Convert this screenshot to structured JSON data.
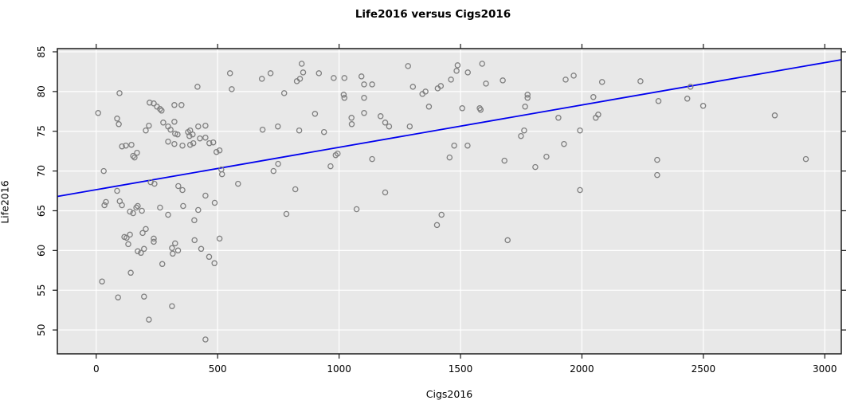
{
  "title": "Life2016 versus Cigs2016",
  "chart_data": {
    "type": "scatter",
    "title": "Life2016 versus Cigs2016",
    "xlabel": "Cigs2016",
    "ylabel": "Life2016",
    "x_ticks": [
      0,
      500,
      1000,
      1500,
      2000,
      2500,
      3000
    ],
    "y_ticks": [
      50,
      55,
      60,
      65,
      70,
      75,
      80,
      85
    ],
    "xlim": [
      -160,
      3068
    ],
    "ylim": [
      47.0,
      85.4
    ],
    "grid": true,
    "legend": null,
    "regression_line": {
      "x1": -160,
      "y1": 66.8,
      "x2": 3068,
      "y2": 84.0
    },
    "colors": {
      "panel_background": "#e8e8e8",
      "gridline": "#ffffff",
      "point_stroke": "#7f7f7f",
      "regression_line": "#0000ee",
      "axis": "#1a1a1a",
      "text": "#000000"
    },
    "point_radius": 3.1,
    "points": [
      [
        8,
        77.3
      ],
      [
        96,
        79.8
      ],
      [
        417,
        80.6
      ],
      [
        551,
        82.3
      ],
      [
        558,
        80.3
      ],
      [
        86,
        76.6
      ],
      [
        93,
        75.9
      ],
      [
        220,
        78.6
      ],
      [
        237,
        78.5
      ],
      [
        250,
        78.1
      ],
      [
        263,
        77.8
      ],
      [
        269,
        77.6
      ],
      [
        322,
        78.3
      ],
      [
        351,
        78.3
      ],
      [
        276,
        76.1
      ],
      [
        296,
        75.6
      ],
      [
        204,
        75.1
      ],
      [
        217,
        75.7
      ],
      [
        306,
        75.2
      ],
      [
        322,
        76.2
      ],
      [
        325,
        74.7
      ],
      [
        335,
        74.6
      ],
      [
        378,
        74.9
      ],
      [
        387,
        75.1
      ],
      [
        397,
        74.6
      ],
      [
        384,
        74.4
      ],
      [
        420,
        75.6
      ],
      [
        450,
        75.7
      ],
      [
        427,
        74.1
      ],
      [
        450,
        74.2
      ],
      [
        296,
        73.7
      ],
      [
        322,
        73.4
      ],
      [
        355,
        73.2
      ],
      [
        387,
        73.3
      ],
      [
        400,
        73.5
      ],
      [
        466,
        73.5
      ],
      [
        482,
        73.6
      ],
      [
        106,
        73.1
      ],
      [
        122,
        73.2
      ],
      [
        145,
        73.3
      ],
      [
        152,
        71.9
      ],
      [
        158,
        71.7
      ],
      [
        168,
        72.3
      ],
      [
        495,
        72.4
      ],
      [
        508,
        72.6
      ],
      [
        31,
        70.0
      ],
      [
        515,
        70.2
      ],
      [
        518,
        69.6
      ],
      [
        224,
        68.6
      ],
      [
        240,
        68.4
      ],
      [
        584,
        68.4
      ],
      [
        86,
        67.5
      ],
      [
        97,
        66.2
      ],
      [
        40,
        66.1
      ],
      [
        338,
        68.1
      ],
      [
        355,
        67.6
      ],
      [
        450,
        66.9
      ],
      [
        488,
        66.0
      ],
      [
        34,
        65.7
      ],
      [
        106,
        65.7
      ],
      [
        139,
        64.9
      ],
      [
        152,
        64.7
      ],
      [
        165,
        65.4
      ],
      [
        171,
        65.6
      ],
      [
        188,
        65.0
      ],
      [
        263,
        65.4
      ],
      [
        296,
        64.5
      ],
      [
        358,
        65.6
      ],
      [
        420,
        65.1
      ],
      [
        404,
        63.8
      ],
      [
        204,
        62.7
      ],
      [
        191,
        62.2
      ],
      [
        139,
        62.0
      ],
      [
        116,
        61.7
      ],
      [
        125,
        61.6
      ],
      [
        132,
        60.8
      ],
      [
        237,
        61.5
      ],
      [
        237,
        61.1
      ],
      [
        325,
        60.9
      ],
      [
        312,
        60.3
      ],
      [
        337,
        60.0
      ],
      [
        315,
        59.6
      ],
      [
        405,
        61.3
      ],
      [
        432,
        60.2
      ],
      [
        508,
        61.5
      ],
      [
        465,
        59.2
      ],
      [
        487,
        58.4
      ],
      [
        171,
        59.9
      ],
      [
        184,
        59.7
      ],
      [
        197,
        60.2
      ],
      [
        272,
        58.3
      ],
      [
        142,
        57.2
      ],
      [
        24,
        56.1
      ],
      [
        90,
        54.1
      ],
      [
        197,
        54.2
      ],
      [
        312,
        53.0
      ],
      [
        217,
        51.3
      ],
      [
        450,
        48.8
      ],
      [
        682,
        81.6
      ],
      [
        718,
        82.3
      ],
      [
        846,
        83.5
      ],
      [
        852,
        82.4
      ],
      [
        826,
        81.3
      ],
      [
        839,
        81.6
      ],
      [
        917,
        82.3
      ],
      [
        978,
        81.7
      ],
      [
        1022,
        81.7
      ],
      [
        1092,
        81.9
      ],
      [
        1103,
        80.9
      ],
      [
        1136,
        80.9
      ],
      [
        774,
        79.8
      ],
      [
        1019,
        79.6
      ],
      [
        1022,
        79.2
      ],
      [
        1103,
        79.2
      ],
      [
        1284,
        83.2
      ],
      [
        1304,
        80.6
      ],
      [
        1343,
        79.7
      ],
      [
        1356,
        80.0
      ],
      [
        1406,
        80.4
      ],
      [
        1419,
        80.7
      ],
      [
        1461,
        81.5
      ],
      [
        1484,
        82.6
      ],
      [
        1488,
        83.3
      ],
      [
        901,
        77.2
      ],
      [
        1051,
        76.7
      ],
      [
        1103,
        77.3
      ],
      [
        1171,
        76.9
      ],
      [
        1052,
        75.9
      ],
      [
        1370,
        78.1
      ],
      [
        1190,
        76.1
      ],
      [
        1206,
        75.6
      ],
      [
        1291,
        75.6
      ],
      [
        685,
        75.2
      ],
      [
        748,
        75.6
      ],
      [
        836,
        75.1
      ],
      [
        938,
        74.9
      ],
      [
        749,
        70.9
      ],
      [
        730,
        70.0
      ],
      [
        986,
        72.0
      ],
      [
        994,
        72.2
      ],
      [
        965,
        70.6
      ],
      [
        1136,
        71.5
      ],
      [
        1190,
        67.3
      ],
      [
        820,
        67.7
      ],
      [
        1474,
        73.2
      ],
      [
        1455,
        71.7
      ],
      [
        783,
        64.6
      ],
      [
        1072,
        65.2
      ],
      [
        1422,
        64.5
      ],
      [
        1403,
        63.2
      ],
      [
        1530,
        82.4
      ],
      [
        1589,
        83.5
      ],
      [
        1605,
        81.0
      ],
      [
        1674,
        81.4
      ],
      [
        1776,
        79.6
      ],
      [
        1776,
        79.2
      ],
      [
        1766,
        78.1
      ],
      [
        1507,
        77.9
      ],
      [
        1579,
        77.9
      ],
      [
        1583,
        77.7
      ],
      [
        1933,
        81.5
      ],
      [
        1966,
        82.0
      ],
      [
        2083,
        81.2
      ],
      [
        2241,
        81.3
      ],
      [
        2047,
        79.3
      ],
      [
        2315,
        78.8
      ],
      [
        2057,
        76.7
      ],
      [
        2067,
        77.1
      ],
      [
        1903,
        76.7
      ],
      [
        1992,
        75.1
      ],
      [
        1762,
        75.1
      ],
      [
        1749,
        74.4
      ],
      [
        1529,
        73.2
      ],
      [
        1926,
        73.4
      ],
      [
        1681,
        71.3
      ],
      [
        1854,
        71.8
      ],
      [
        1808,
        70.5
      ],
      [
        2310,
        71.4
      ],
      [
        2310,
        69.5
      ],
      [
        1992,
        67.6
      ],
      [
        1694,
        61.3
      ],
      [
        2447,
        80.6
      ],
      [
        2434,
        79.1
      ],
      [
        2499,
        78.2
      ],
      [
        2794,
        77.0
      ],
      [
        2922,
        71.5
      ]
    ]
  }
}
